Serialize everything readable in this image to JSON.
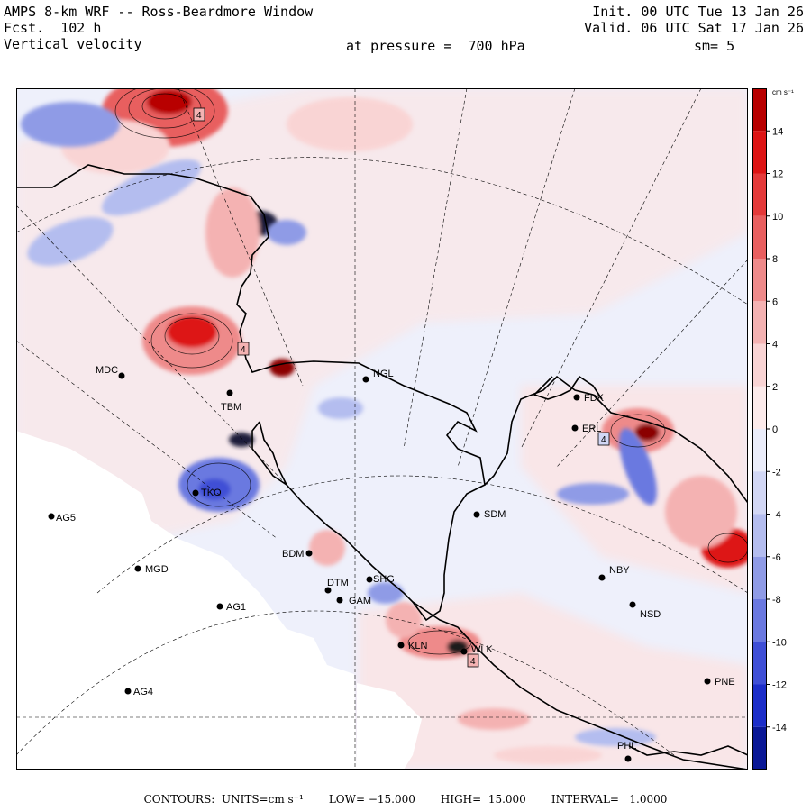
{
  "header": {
    "model": "AMPS 8-km WRF -- Ross-Beardmore Window",
    "forecast": "Fcst.  102 h",
    "field": "Vertical velocity",
    "init": "Init. 00 UTC Tue 13 Jan 26",
    "valid": "Valid. 06 UTC Sat 17 Jan 26",
    "pressure": "at pressure =  700 hPa",
    "smoothing": "sm= 5"
  },
  "colorbar": {
    "units": "cm s⁻¹",
    "ticks": [
      14,
      12,
      10,
      8,
      6,
      4,
      2,
      0,
      -2,
      -4,
      -6,
      -8,
      -10,
      -12,
      -14
    ],
    "min": -16,
    "max": 16,
    "colors_positive": [
      "#fcebeb",
      "#f9d4d4",
      "#f4b2b2",
      "#ee8a8a",
      "#e85f5f",
      "#e43a3a",
      "#dd1414",
      "#b80000"
    ],
    "colors_negative": [
      "#ebedfa",
      "#d2d7f5",
      "#b4bdef",
      "#8f9be6",
      "#6b79e0",
      "#3f4fd6",
      "#1c2ec9",
      "#0a1896"
    ]
  },
  "stations": [
    {
      "id": "MDC",
      "label": "MDC"
    },
    {
      "id": "NGL",
      "label": "NGL"
    },
    {
      "id": "TBM",
      "label": "TBM"
    },
    {
      "id": "FDK",
      "label": "FDK"
    },
    {
      "id": "ERL",
      "label": "ERL"
    },
    {
      "id": "AG5",
      "label": "AG5"
    },
    {
      "id": "TKO",
      "label": "TKO"
    },
    {
      "id": "SDM",
      "label": "SDM"
    },
    {
      "id": "BDM",
      "label": "BDM"
    },
    {
      "id": "MGD",
      "label": "MGD"
    },
    {
      "id": "NBY",
      "label": "NBY"
    },
    {
      "id": "DTM",
      "label": "DTM"
    },
    {
      "id": "GAM",
      "label": "GAM"
    },
    {
      "id": "AG1",
      "label": "AG1"
    },
    {
      "id": "NSD",
      "label": "NSD"
    },
    {
      "id": "KLN",
      "label": "KLN"
    },
    {
      "id": "WLK",
      "label": "WLK"
    },
    {
      "id": "AG4",
      "label": "AG4"
    },
    {
      "id": "PNE",
      "label": "PNE"
    },
    {
      "id": "PHL",
      "label": "PHL"
    },
    {
      "id": "SHG",
      "label": "SHG"
    }
  ],
  "contour_labels": [
    "4",
    "4",
    "4",
    "4"
  ],
  "footer": {
    "contours": "CONTOURS:  UNITS=cm s⁻¹",
    "low": "LOW= −15.000",
    "high": "HIGH=  15.000",
    "interval": "INTERVAL=   1.0000"
  }
}
